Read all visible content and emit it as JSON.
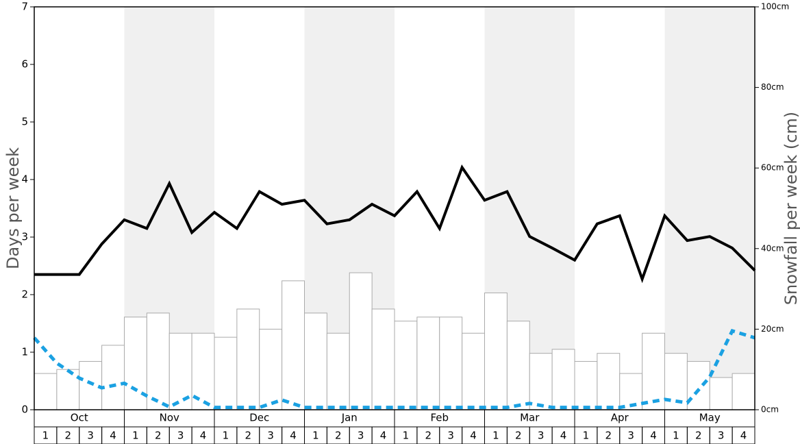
{
  "chart_data": {
    "type": "bar",
    "ylabel": "Days per week",
    "y2label": "Snowfall per week (cm)",
    "months": [
      "Oct",
      "Nov",
      "Dec",
      "Jan",
      "Feb",
      "Mar",
      "Apr",
      "May"
    ],
    "weeks": [
      "1",
      "2",
      "3",
      "4"
    ],
    "ylim": [
      0,
      7
    ],
    "yticks": [
      0,
      1,
      2,
      3,
      4,
      5,
      6,
      7
    ],
    "y2lim": [
      0,
      100
    ],
    "y2ticks": [
      {
        "value": 0,
        "label": "0cm"
      },
      {
        "value": 20,
        "label": "20cm"
      },
      {
        "value": 40,
        "label": "40cm"
      },
      {
        "value": 60,
        "label": "60cm"
      },
      {
        "value": 80,
        "label": "80cm"
      },
      {
        "value": 100,
        "label": "100cm"
      }
    ],
    "series": [
      {
        "type": "bar",
        "axis": "y2",
        "color": "#ffffff",
        "values": [
          9,
          10,
          12,
          16,
          23,
          24,
          19,
          19,
          18,
          25,
          20,
          32,
          24,
          19,
          34,
          25,
          22,
          23,
          23,
          19,
          29,
          22,
          14,
          15,
          12,
          14,
          9,
          19,
          14,
          12,
          8,
          9
        ]
      },
      {
        "type": "line",
        "color": "#000000",
        "values": [
          2.35,
          2.35,
          2.35,
          2.88,
          3.3,
          3.15,
          3.93,
          3.08,
          3.43,
          3.15,
          3.79,
          3.57,
          3.64,
          3.23,
          3.3,
          3.57,
          3.37,
          3.79,
          3.15,
          4.21,
          3.64,
          3.79,
          3.01,
          2.81,
          2.6,
          3.23,
          3.37,
          2.27,
          3.37,
          2.94,
          3.01,
          2.81,
          2.42
        ]
      },
      {
        "type": "line",
        "color": "#1ba1e2",
        "dashed": true,
        "values": [
          1.25,
          0.81,
          0.55,
          0.38,
          0.46,
          0.24,
          0.05,
          0.25,
          0.04,
          0.04,
          0.04,
          0.17,
          0.04,
          0.04,
          0.04,
          0.04,
          0.04,
          0.04,
          0.04,
          0.04,
          0.04,
          0.04,
          0.11,
          0.04,
          0.04,
          0.04,
          0.04,
          0.11,
          0.18,
          0.12,
          0.57,
          1.37,
          1.25
        ]
      }
    ]
  }
}
